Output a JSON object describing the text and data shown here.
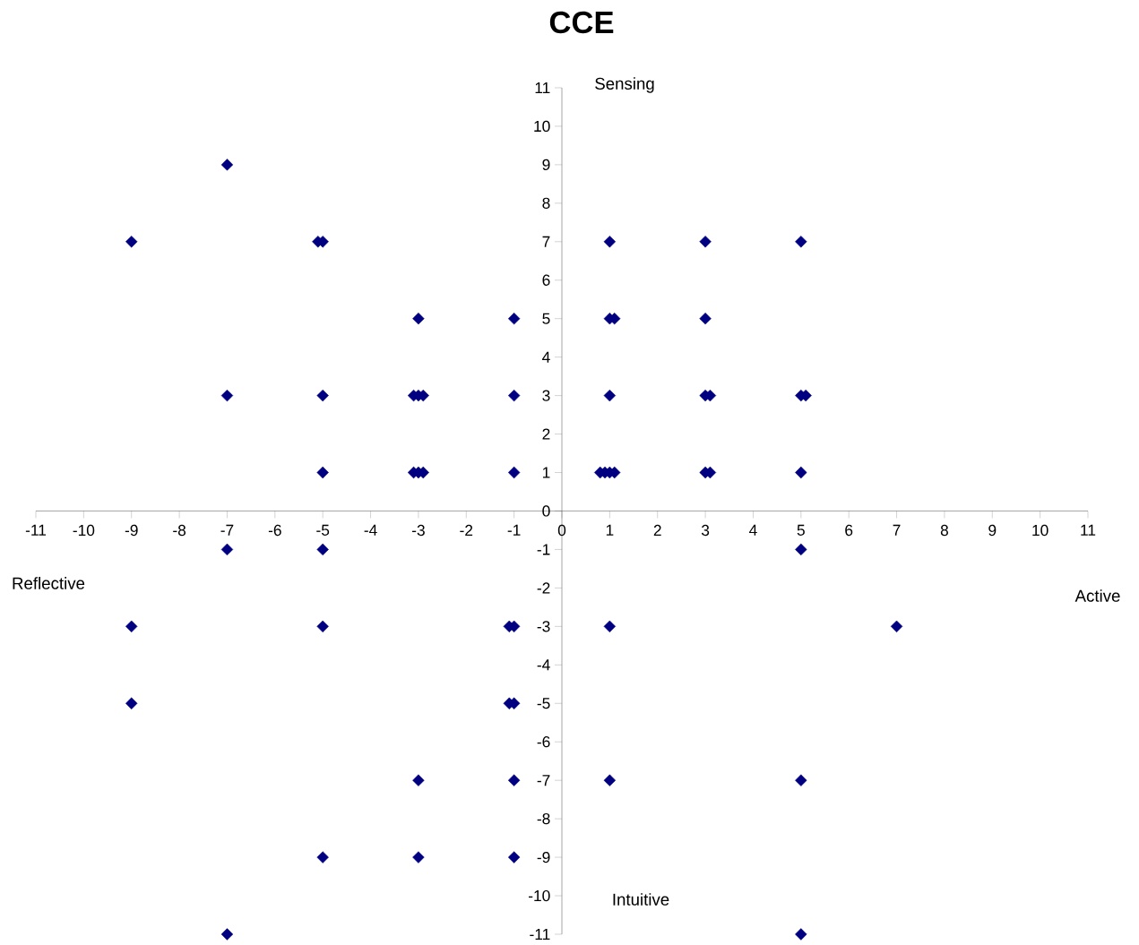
{
  "chart_data": {
    "type": "scatter",
    "title": "CCE",
    "annotations": [
      "Sensing",
      "Intuitive",
      "Reflective",
      "Active"
    ],
    "marker": "diamond",
    "grid": false,
    "xlim": [
      -11,
      11
    ],
    "ylim": [
      -11,
      11
    ],
    "xticks": [
      -11,
      -10,
      -9,
      -8,
      -7,
      -6,
      -5,
      -4,
      -3,
      -2,
      -1,
      0,
      1,
      2,
      3,
      4,
      5,
      6,
      7,
      8,
      9,
      10,
      11
    ],
    "yticks": [
      -11,
      -10,
      -9,
      -8,
      -7,
      -6,
      -5,
      -4,
      -3,
      -2,
      -1,
      0,
      1,
      2,
      3,
      4,
      5,
      6,
      7,
      8,
      9,
      10,
      11
    ],
    "series": [
      {
        "color": "#000080",
        "x": [
          -7,
          -9,
          -5.1,
          -5,
          1,
          3,
          5,
          -3,
          -1,
          1,
          1.1,
          3,
          -7,
          -5,
          -3.1,
          -3,
          -2.9,
          -1,
          1,
          3,
          3.1,
          5,
          5.1,
          -5,
          -3.1,
          -3,
          -2.9,
          -1,
          0.8,
          0.9,
          1,
          1.1,
          3,
          3.1,
          5,
          -7,
          -5,
          5,
          -9,
          -5,
          -1.1,
          -1,
          1,
          7,
          -9,
          -1.1,
          -1,
          -3,
          -1,
          1,
          5,
          -5,
          -3,
          -1,
          -7,
          5
        ],
        "values": [
          9,
          7,
          7,
          7,
          7,
          7,
          7,
          5,
          5,
          5,
          5,
          5,
          3,
          3,
          3,
          3,
          3,
          3,
          3,
          3,
          3,
          3,
          3,
          1,
          1,
          1,
          1,
          1,
          1,
          1,
          1,
          1,
          1,
          1,
          1,
          -1,
          -1,
          -1,
          -3,
          -3,
          -3,
          -3,
          -3,
          -3,
          -5,
          -5,
          -5,
          -7,
          -7,
          -7,
          -7,
          -9,
          -9,
          -9,
          -11,
          -11
        ]
      }
    ]
  }
}
